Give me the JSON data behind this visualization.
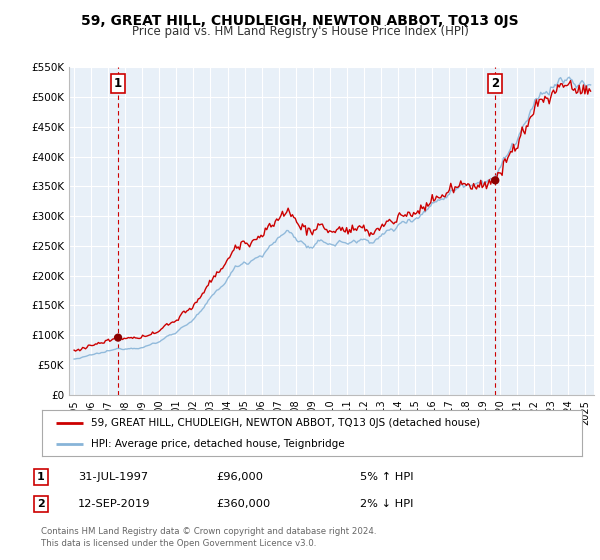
{
  "title": "59, GREAT HILL, CHUDLEIGH, NEWTON ABBOT, TQ13 0JS",
  "subtitle": "Price paid vs. HM Land Registry's House Price Index (HPI)",
  "xlim": [
    1994.7,
    2025.5
  ],
  "ylim": [
    0,
    550000
  ],
  "yticks": [
    0,
    50000,
    100000,
    150000,
    200000,
    250000,
    300000,
    350000,
    400000,
    450000,
    500000,
    550000
  ],
  "ytick_labels": [
    "£0",
    "£50K",
    "£100K",
    "£150K",
    "£200K",
    "£250K",
    "£300K",
    "£350K",
    "£400K",
    "£450K",
    "£500K",
    "£550K"
  ],
  "sale1_date": 1997.58,
  "sale1_price": 96000,
  "sale2_date": 2019.71,
  "sale2_price": 360000,
  "hpi_color": "#88b4d8",
  "price_color": "#cc0000",
  "marker_color": "#8b0000",
  "bg_color": "#e8f0f8",
  "grid_color": "#ffffff",
  "legend_label_price": "59, GREAT HILL, CHUDLEIGH, NEWTON ABBOT, TQ13 0JS (detached house)",
  "legend_label_hpi": "HPI: Average price, detached house, Teignbridge",
  "annotation1_date": "31-JUL-1997",
  "annotation1_price": "£96,000",
  "annotation1_pct": "5% ↑ HPI",
  "annotation2_date": "12-SEP-2019",
  "annotation2_price": "£360,000",
  "annotation2_pct": "2% ↓ HPI",
  "footer": "Contains HM Land Registry data © Crown copyright and database right 2024.\nThis data is licensed under the Open Government Licence v3.0."
}
